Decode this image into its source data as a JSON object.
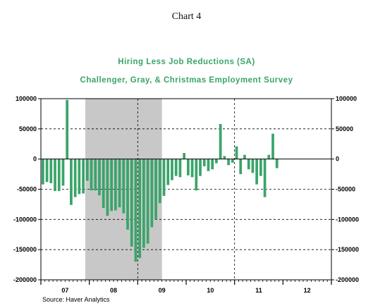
{
  "header": {
    "chart_number": "Chart 4"
  },
  "footer": {
    "source": "Source: Haver Analytics"
  },
  "chart_data": {
    "type": "bar",
    "title": "Hiring Less Job Reductions (SA)",
    "subtitle": "Challenger, Gray, & Christmas  Employment Survey",
    "source": "Source: Haver Analytics",
    "frequency": "monthly",
    "x_start": "2007-01",
    "x_end": "2012-12",
    "ylim": [
      -200000,
      100000
    ],
    "y_ticks": [
      100000,
      50000,
      0,
      -50000,
      -100000,
      -150000,
      -200000
    ],
    "y_tick_labels": [
      "100000",
      "50000",
      "0",
      "-50000",
      "-100000",
      "-150000",
      "-200000"
    ],
    "x_tick_labels": [
      "07",
      "08",
      "09",
      "10",
      "11",
      "12"
    ],
    "recession_shading": {
      "start": "2007-12",
      "end": "2009-06"
    },
    "dashed_verticals": [
      "2009-01",
      "2011-01"
    ],
    "gridlines": "horizontal dashed",
    "series_color": "#3aa46a",
    "shading_color": "#c8c8c8",
    "series": [
      {
        "values": [
          -42000,
          -38000,
          -40000,
          -53000,
          -53000,
          -44000,
          98000,
          -76000,
          -63000,
          -58000,
          -57000,
          -36000,
          -52000,
          -52000,
          -60000,
          -81000,
          -94000,
          -86000,
          -85000,
          -80000,
          -90000,
          -117000,
          -145000,
          -170000,
          -164000,
          -147000,
          -140000,
          -113000,
          -100000,
          -73000,
          -61000,
          -43000,
          -35000,
          -28000,
          -30000,
          10000,
          -27000,
          -30000,
          -52000,
          -28000,
          -12000,
          -20000,
          -17000,
          -7000,
          58000,
          5000,
          -10000,
          -6000,
          21000,
          -25000,
          7000,
          -17000,
          -23000,
          -42000,
          -28000,
          -63000,
          7000,
          42000,
          -15000
        ]
      }
    ]
  }
}
